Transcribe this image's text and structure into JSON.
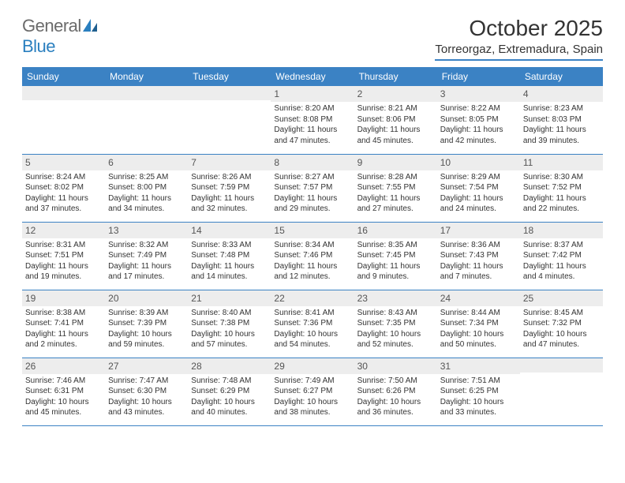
{
  "logo": {
    "text1": "General",
    "text2": "Blue"
  },
  "title": "October 2025",
  "location": "Torreorgaz, Extremadura, Spain",
  "colors": {
    "header_bg": "#3b82c4",
    "header_text": "#ffffff",
    "daynum_bg": "#ededed",
    "border": "#3b82c4",
    "logo_gray": "#6b6b6b",
    "logo_blue": "#2a7fbf"
  },
  "weekdays": [
    "Sunday",
    "Monday",
    "Tuesday",
    "Wednesday",
    "Thursday",
    "Friday",
    "Saturday"
  ],
  "weeks": [
    [
      null,
      null,
      null,
      {
        "n": "1",
        "sr": "Sunrise: 8:20 AM",
        "ss": "Sunset: 8:08 PM",
        "d1": "Daylight: 11 hours",
        "d2": "and 47 minutes."
      },
      {
        "n": "2",
        "sr": "Sunrise: 8:21 AM",
        "ss": "Sunset: 8:06 PM",
        "d1": "Daylight: 11 hours",
        "d2": "and 45 minutes."
      },
      {
        "n": "3",
        "sr": "Sunrise: 8:22 AM",
        "ss": "Sunset: 8:05 PM",
        "d1": "Daylight: 11 hours",
        "d2": "and 42 minutes."
      },
      {
        "n": "4",
        "sr": "Sunrise: 8:23 AM",
        "ss": "Sunset: 8:03 PM",
        "d1": "Daylight: 11 hours",
        "d2": "and 39 minutes."
      }
    ],
    [
      {
        "n": "5",
        "sr": "Sunrise: 8:24 AM",
        "ss": "Sunset: 8:02 PM",
        "d1": "Daylight: 11 hours",
        "d2": "and 37 minutes."
      },
      {
        "n": "6",
        "sr": "Sunrise: 8:25 AM",
        "ss": "Sunset: 8:00 PM",
        "d1": "Daylight: 11 hours",
        "d2": "and 34 minutes."
      },
      {
        "n": "7",
        "sr": "Sunrise: 8:26 AM",
        "ss": "Sunset: 7:59 PM",
        "d1": "Daylight: 11 hours",
        "d2": "and 32 minutes."
      },
      {
        "n": "8",
        "sr": "Sunrise: 8:27 AM",
        "ss": "Sunset: 7:57 PM",
        "d1": "Daylight: 11 hours",
        "d2": "and 29 minutes."
      },
      {
        "n": "9",
        "sr": "Sunrise: 8:28 AM",
        "ss": "Sunset: 7:55 PM",
        "d1": "Daylight: 11 hours",
        "d2": "and 27 minutes."
      },
      {
        "n": "10",
        "sr": "Sunrise: 8:29 AM",
        "ss": "Sunset: 7:54 PM",
        "d1": "Daylight: 11 hours",
        "d2": "and 24 minutes."
      },
      {
        "n": "11",
        "sr": "Sunrise: 8:30 AM",
        "ss": "Sunset: 7:52 PM",
        "d1": "Daylight: 11 hours",
        "d2": "and 22 minutes."
      }
    ],
    [
      {
        "n": "12",
        "sr": "Sunrise: 8:31 AM",
        "ss": "Sunset: 7:51 PM",
        "d1": "Daylight: 11 hours",
        "d2": "and 19 minutes."
      },
      {
        "n": "13",
        "sr": "Sunrise: 8:32 AM",
        "ss": "Sunset: 7:49 PM",
        "d1": "Daylight: 11 hours",
        "d2": "and 17 minutes."
      },
      {
        "n": "14",
        "sr": "Sunrise: 8:33 AM",
        "ss": "Sunset: 7:48 PM",
        "d1": "Daylight: 11 hours",
        "d2": "and 14 minutes."
      },
      {
        "n": "15",
        "sr": "Sunrise: 8:34 AM",
        "ss": "Sunset: 7:46 PM",
        "d1": "Daylight: 11 hours",
        "d2": "and 12 minutes."
      },
      {
        "n": "16",
        "sr": "Sunrise: 8:35 AM",
        "ss": "Sunset: 7:45 PM",
        "d1": "Daylight: 11 hours",
        "d2": "and 9 minutes."
      },
      {
        "n": "17",
        "sr": "Sunrise: 8:36 AM",
        "ss": "Sunset: 7:43 PM",
        "d1": "Daylight: 11 hours",
        "d2": "and 7 minutes."
      },
      {
        "n": "18",
        "sr": "Sunrise: 8:37 AM",
        "ss": "Sunset: 7:42 PM",
        "d1": "Daylight: 11 hours",
        "d2": "and 4 minutes."
      }
    ],
    [
      {
        "n": "19",
        "sr": "Sunrise: 8:38 AM",
        "ss": "Sunset: 7:41 PM",
        "d1": "Daylight: 11 hours",
        "d2": "and 2 minutes."
      },
      {
        "n": "20",
        "sr": "Sunrise: 8:39 AM",
        "ss": "Sunset: 7:39 PM",
        "d1": "Daylight: 10 hours",
        "d2": "and 59 minutes."
      },
      {
        "n": "21",
        "sr": "Sunrise: 8:40 AM",
        "ss": "Sunset: 7:38 PM",
        "d1": "Daylight: 10 hours",
        "d2": "and 57 minutes."
      },
      {
        "n": "22",
        "sr": "Sunrise: 8:41 AM",
        "ss": "Sunset: 7:36 PM",
        "d1": "Daylight: 10 hours",
        "d2": "and 54 minutes."
      },
      {
        "n": "23",
        "sr": "Sunrise: 8:43 AM",
        "ss": "Sunset: 7:35 PM",
        "d1": "Daylight: 10 hours",
        "d2": "and 52 minutes."
      },
      {
        "n": "24",
        "sr": "Sunrise: 8:44 AM",
        "ss": "Sunset: 7:34 PM",
        "d1": "Daylight: 10 hours",
        "d2": "and 50 minutes."
      },
      {
        "n": "25",
        "sr": "Sunrise: 8:45 AM",
        "ss": "Sunset: 7:32 PM",
        "d1": "Daylight: 10 hours",
        "d2": "and 47 minutes."
      }
    ],
    [
      {
        "n": "26",
        "sr": "Sunrise: 7:46 AM",
        "ss": "Sunset: 6:31 PM",
        "d1": "Daylight: 10 hours",
        "d2": "and 45 minutes."
      },
      {
        "n": "27",
        "sr": "Sunrise: 7:47 AM",
        "ss": "Sunset: 6:30 PM",
        "d1": "Daylight: 10 hours",
        "d2": "and 43 minutes."
      },
      {
        "n": "28",
        "sr": "Sunrise: 7:48 AM",
        "ss": "Sunset: 6:29 PM",
        "d1": "Daylight: 10 hours",
        "d2": "and 40 minutes."
      },
      {
        "n": "29",
        "sr": "Sunrise: 7:49 AM",
        "ss": "Sunset: 6:27 PM",
        "d1": "Daylight: 10 hours",
        "d2": "and 38 minutes."
      },
      {
        "n": "30",
        "sr": "Sunrise: 7:50 AM",
        "ss": "Sunset: 6:26 PM",
        "d1": "Daylight: 10 hours",
        "d2": "and 36 minutes."
      },
      {
        "n": "31",
        "sr": "Sunrise: 7:51 AM",
        "ss": "Sunset: 6:25 PM",
        "d1": "Daylight: 10 hours",
        "d2": "and 33 minutes."
      },
      null
    ]
  ]
}
